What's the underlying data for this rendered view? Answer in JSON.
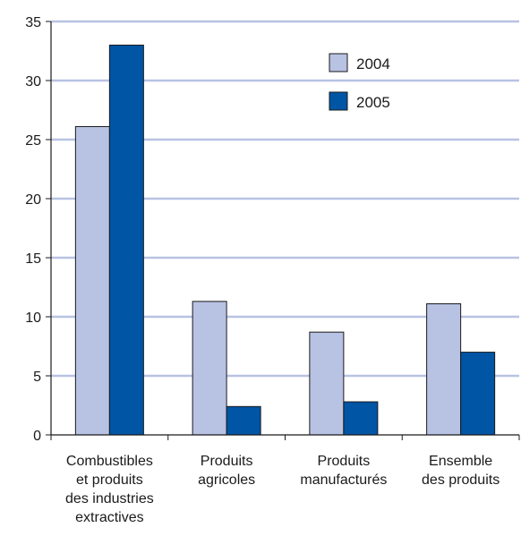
{
  "chart_data": {
    "type": "bar",
    "title": "",
    "xlabel": "",
    "ylabel": "",
    "ylim": [
      0,
      35
    ],
    "yticks": [
      0,
      5,
      10,
      15,
      20,
      25,
      30,
      35
    ],
    "grid": true,
    "legend": "top-right",
    "categories": [
      [
        "Combustibles",
        "et produits",
        "des industries",
        "extractives"
      ],
      [
        "Produits",
        "agricoles"
      ],
      [
        "Produits",
        "manufacturés"
      ],
      [
        "Ensemble",
        "des produits"
      ]
    ],
    "series": [
      {
        "name": "2004",
        "color": "#b8c2e3",
        "values": [
          26.1,
          11.3,
          8.7,
          11.1
        ]
      },
      {
        "name": "2005",
        "color": "#0055a5",
        "values": [
          33.0,
          2.4,
          2.8,
          7.0
        ]
      }
    ],
    "gridColor": "#b8c2e3",
    "axisColor": "#1a1a1a"
  }
}
